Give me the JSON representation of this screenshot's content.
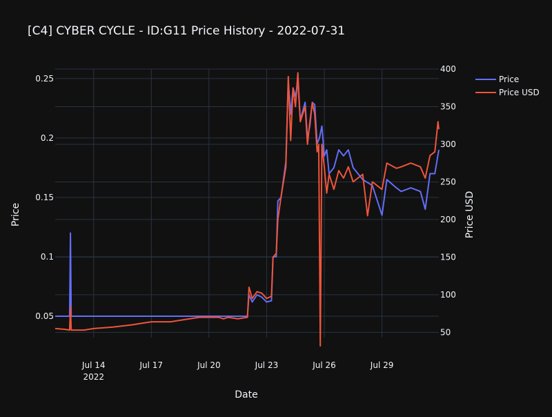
{
  "chart_data": {
    "type": "line",
    "title": "[C4] CYBER CYCLE - ID:G11 Price History - 2022-07-31",
    "xlabel": "Date",
    "ylabel": "Price",
    "y2label": "Price USD",
    "x_ticks": [
      "Jul 14",
      "Jul 17",
      "Jul 20",
      "Jul 23",
      "Jul 26",
      "Jul 29"
    ],
    "x_tick_sub": "2022",
    "y_ticks": [
      "0.05",
      "0.1",
      "0.15",
      "0.2",
      "0.25"
    ],
    "y2_ticks": [
      "50",
      "100",
      "150",
      "200",
      "250",
      "300",
      "350",
      "400"
    ],
    "xlim": [
      "2022-07-12 00:00",
      "2022-07-31 23:00"
    ],
    "ylim": [
      0.032,
      0.258
    ],
    "y2lim": [
      43,
      400
    ],
    "grid": true,
    "legend": "top-right",
    "series": [
      {
        "name": "Price",
        "axis": "y",
        "color": "#636efa",
        "points": [
          [
            "2022-07-12 00:00",
            0.05
          ],
          [
            "2022-07-12 18:00",
            0.05
          ],
          [
            "2022-07-12 19:00",
            0.12
          ],
          [
            "2022-07-12 20:00",
            0.05
          ],
          [
            "2022-07-14 00:00",
            0.05
          ],
          [
            "2022-07-17 00:00",
            0.05
          ],
          [
            "2022-07-20 00:00",
            0.05
          ],
          [
            "2022-07-21 12:00",
            0.05
          ],
          [
            "2022-07-22 00:00",
            0.05
          ],
          [
            "2022-07-22 02:00",
            0.068
          ],
          [
            "2022-07-22 06:00",
            0.062
          ],
          [
            "2022-07-22 12:00",
            0.068
          ],
          [
            "2022-07-22 18:00",
            0.066
          ],
          [
            "2022-07-23 00:00",
            0.062
          ],
          [
            "2022-07-23 06:00",
            0.063
          ],
          [
            "2022-07-23 08:00",
            0.1
          ],
          [
            "2022-07-23 12:00",
            0.1
          ],
          [
            "2022-07-23 14:00",
            0.147
          ],
          [
            "2022-07-23 18:00",
            0.15
          ],
          [
            "2022-07-24 00:00",
            0.18
          ],
          [
            "2022-07-24 03:00",
            0.248
          ],
          [
            "2022-07-24 06:00",
            0.22
          ],
          [
            "2022-07-24 09:00",
            0.242
          ],
          [
            "2022-07-24 12:00",
            0.235
          ],
          [
            "2022-07-24 15:00",
            0.247
          ],
          [
            "2022-07-24 18:00",
            0.215
          ],
          [
            "2022-07-25 00:00",
            0.23
          ],
          [
            "2022-07-25 03:00",
            0.2
          ],
          [
            "2022-07-25 06:00",
            0.21
          ],
          [
            "2022-07-25 09:00",
            0.23
          ],
          [
            "2022-07-25 12:00",
            0.228
          ],
          [
            "2022-07-25 15:00",
            0.195
          ],
          [
            "2022-07-25 18:00",
            0.2
          ],
          [
            "2022-07-25 21:00",
            0.21
          ],
          [
            "2022-07-26 00:00",
            0.185
          ],
          [
            "2022-07-26 03:00",
            0.19
          ],
          [
            "2022-07-26 06:00",
            0.17
          ],
          [
            "2022-07-26 12:00",
            0.175
          ],
          [
            "2022-07-26 18:00",
            0.19
          ],
          [
            "2022-07-27 00:00",
            0.185
          ],
          [
            "2022-07-27 06:00",
            0.19
          ],
          [
            "2022-07-27 12:00",
            0.175
          ],
          [
            "2022-07-28 00:00",
            0.165
          ],
          [
            "2022-07-28 12:00",
            0.16
          ],
          [
            "2022-07-29 00:00",
            0.135
          ],
          [
            "2022-07-29 06:00",
            0.165
          ],
          [
            "2022-07-29 18:00",
            0.158
          ],
          [
            "2022-07-30 00:00",
            0.155
          ],
          [
            "2022-07-30 12:00",
            0.158
          ],
          [
            "2022-07-31 00:00",
            0.155
          ],
          [
            "2022-07-31 06:00",
            0.14
          ],
          [
            "2022-07-31 12:00",
            0.17
          ],
          [
            "2022-07-31 18:00",
            0.17
          ],
          [
            "2022-07-31 23:00",
            0.19
          ]
        ]
      },
      {
        "name": "Price USD",
        "axis": "y2",
        "color": "#ef553b",
        "points": [
          [
            "2022-07-12 00:00",
            55
          ],
          [
            "2022-07-12 12:00",
            54
          ],
          [
            "2022-07-12 18:00",
            53
          ],
          [
            "2022-07-12 19:00",
            84
          ],
          [
            "2022-07-12 20:00",
            53
          ],
          [
            "2022-07-13 12:00",
            53
          ],
          [
            "2022-07-14 00:00",
            55
          ],
          [
            "2022-07-15 00:00",
            57
          ],
          [
            "2022-07-16 00:00",
            60
          ],
          [
            "2022-07-16 12:00",
            62
          ],
          [
            "2022-07-17 00:00",
            64
          ],
          [
            "2022-07-18 00:00",
            64
          ],
          [
            "2022-07-19 00:00",
            68
          ],
          [
            "2022-07-19 12:00",
            70
          ],
          [
            "2022-07-20 00:00",
            70
          ],
          [
            "2022-07-20 12:00",
            70
          ],
          [
            "2022-07-20 18:00",
            68
          ],
          [
            "2022-07-21 00:00",
            70
          ],
          [
            "2022-07-21 12:00",
            68
          ],
          [
            "2022-07-22 00:00",
            70
          ],
          [
            "2022-07-22 02:00",
            110
          ],
          [
            "2022-07-22 06:00",
            95
          ],
          [
            "2022-07-22 12:00",
            104
          ],
          [
            "2022-07-22 18:00",
            102
          ],
          [
            "2022-07-23 00:00",
            95
          ],
          [
            "2022-07-23 06:00",
            98
          ],
          [
            "2022-07-23 08:00",
            150
          ],
          [
            "2022-07-23 12:00",
            155
          ],
          [
            "2022-07-23 14:00",
            200
          ],
          [
            "2022-07-23 18:00",
            230
          ],
          [
            "2022-07-24 00:00",
            270
          ],
          [
            "2022-07-24 03:00",
            390
          ],
          [
            "2022-07-24 06:00",
            305
          ],
          [
            "2022-07-24 09:00",
            375
          ],
          [
            "2022-07-24 12:00",
            350
          ],
          [
            "2022-07-24 15:00",
            395
          ],
          [
            "2022-07-24 18:00",
            330
          ],
          [
            "2022-07-25 00:00",
            350
          ],
          [
            "2022-07-25 03:00",
            300
          ],
          [
            "2022-07-25 06:00",
            330
          ],
          [
            "2022-07-25 09:00",
            355
          ],
          [
            "2022-07-25 12:00",
            340
          ],
          [
            "2022-07-25 15:00",
            290
          ],
          [
            "2022-07-25 17:00",
            300
          ],
          [
            "2022-07-25 19:00",
            32
          ],
          [
            "2022-07-25 21:00",
            300
          ],
          [
            "2022-07-26 00:00",
            270
          ],
          [
            "2022-07-26 03:00",
            235
          ],
          [
            "2022-07-26 06:00",
            260
          ],
          [
            "2022-07-26 12:00",
            240
          ],
          [
            "2022-07-26 18:00",
            265
          ],
          [
            "2022-07-27 00:00",
            255
          ],
          [
            "2022-07-27 06:00",
            270
          ],
          [
            "2022-07-27 12:00",
            250
          ],
          [
            "2022-07-28 00:00",
            260
          ],
          [
            "2022-07-28 06:00",
            205
          ],
          [
            "2022-07-28 12:00",
            250
          ],
          [
            "2022-07-29 00:00",
            240
          ],
          [
            "2022-07-29 06:00",
            275
          ],
          [
            "2022-07-29 18:00",
            268
          ],
          [
            "2022-07-30 00:00",
            270
          ],
          [
            "2022-07-30 12:00",
            275
          ],
          [
            "2022-07-31 00:00",
            270
          ],
          [
            "2022-07-31 06:00",
            255
          ],
          [
            "2022-07-31 12:00",
            285
          ],
          [
            "2022-07-31 18:00",
            290
          ],
          [
            "2022-07-31 22:00",
            330
          ],
          [
            "2022-07-31 23:00",
            320
          ]
        ]
      }
    ]
  }
}
